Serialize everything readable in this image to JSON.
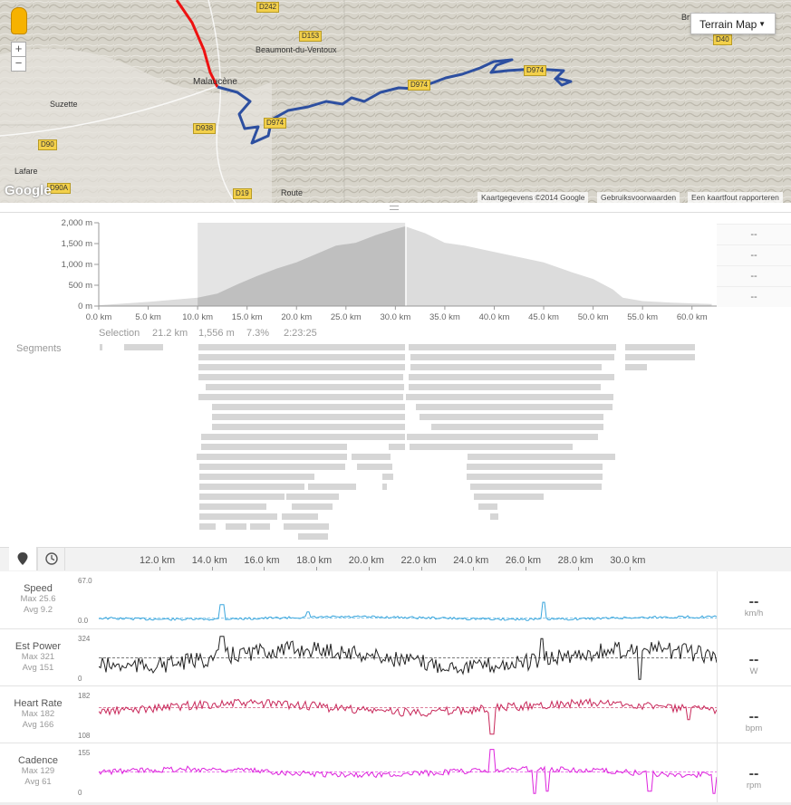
{
  "map": {
    "type_button": "Terrain Map",
    "zoom_in": "+",
    "zoom_out": "−",
    "logo": "Google",
    "attribution": [
      "Kaartgegevens ©2014 Google",
      "Gebruiksvoorwaarden",
      "Een kaartfout rapporteren"
    ],
    "towns": [
      "Malaucène",
      "Beaumont-du-Ventoux",
      "Suzette",
      "Lafare",
      "Route",
      "Br"
    ],
    "roads": [
      "D242",
      "D153",
      "D938",
      "D90",
      "D90A",
      "D19",
      "D974",
      "D974",
      "D974",
      "D40"
    ]
  },
  "elevation": {
    "y_ticks": [
      "2,000 m",
      "1,500 m",
      "1,000 m",
      "500 m",
      "0 m"
    ],
    "x_ticks": [
      "0.0 km",
      "5.0 km",
      "10.0 km",
      "15.0 km",
      "20.0 km",
      "25.0 km",
      "30.0 km",
      "35.0 km",
      "40.0 km",
      "45.0 km",
      "50.0 km",
      "55.0 km",
      "60.0 km"
    ],
    "selection": {
      "label": "Selection",
      "distance": "21.2 km",
      "elevation": "1,556 m",
      "grade": "7.3%",
      "time": "2:23:25"
    },
    "side_values": [
      "--",
      "--",
      "--",
      "--"
    ],
    "segments_label": "Segments"
  },
  "tabs": [
    {
      "icon": "map-pin-icon"
    },
    {
      "icon": "clock-icon"
    }
  ],
  "km_axis": [
    "12.0 km",
    "14.0 km",
    "16.0 km",
    "18.0 km",
    "20.0 km",
    "22.0 km",
    "24.0 km",
    "26.0 km",
    "28.0 km",
    "30.0 km"
  ],
  "metrics": [
    {
      "name": "Speed",
      "max": "Max 25.6",
      "avg": "Avg 9.2",
      "top": "67.0",
      "bottom": "0.0",
      "value": "--",
      "unit": "km/h",
      "color": "#3aa6dd"
    },
    {
      "name": "Est Power",
      "max": "Max 321",
      "avg": "Avg 151",
      "top": "324",
      "bottom": "0",
      "value": "--",
      "unit": "W",
      "color": "#222222"
    },
    {
      "name": "Heart Rate",
      "max": "Max 182",
      "avg": "Avg 166",
      "top": "182",
      "bottom": "108",
      "value": "--",
      "unit": "bpm",
      "color": "#c8285a"
    },
    {
      "name": "Cadence",
      "max": "Max 129",
      "avg": "Avg 61",
      "top": "155",
      "bottom": "0",
      "value": "--",
      "unit": "rpm",
      "color": "#dd22dd"
    }
  ]
}
